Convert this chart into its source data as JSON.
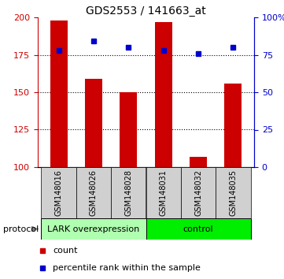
{
  "title": "GDS2553 / 141663_at",
  "samples": [
    "GSM148016",
    "GSM148026",
    "GSM148028",
    "GSM148031",
    "GSM148032",
    "GSM148035"
  ],
  "counts": [
    198,
    159,
    150,
    197,
    107,
    156
  ],
  "percentile_ranks": [
    78,
    84,
    80,
    78,
    76,
    80
  ],
  "ymin": 100,
  "ymax": 200,
  "yticks_left": [
    100,
    125,
    150,
    175,
    200
  ],
  "yticks_right": [
    0,
    25,
    50,
    75,
    100
  ],
  "bar_color": "#cc0000",
  "dot_color": "#0000cc",
  "group_lark_color": "#b0ffb0",
  "group_ctrl_color": "#00ee00",
  "sample_bg_color": "#d0d0d0",
  "protocol_label": "protocol",
  "legend_count_label": "count",
  "legend_pct_label": "percentile rank within the sample",
  "title_fontsize": 10,
  "tick_fontsize": 8,
  "sample_fontsize": 7,
  "protocol_fontsize": 8,
  "legend_fontsize": 8,
  "axis_left_color": "#cc0000",
  "axis_right_color": "#0000cc"
}
